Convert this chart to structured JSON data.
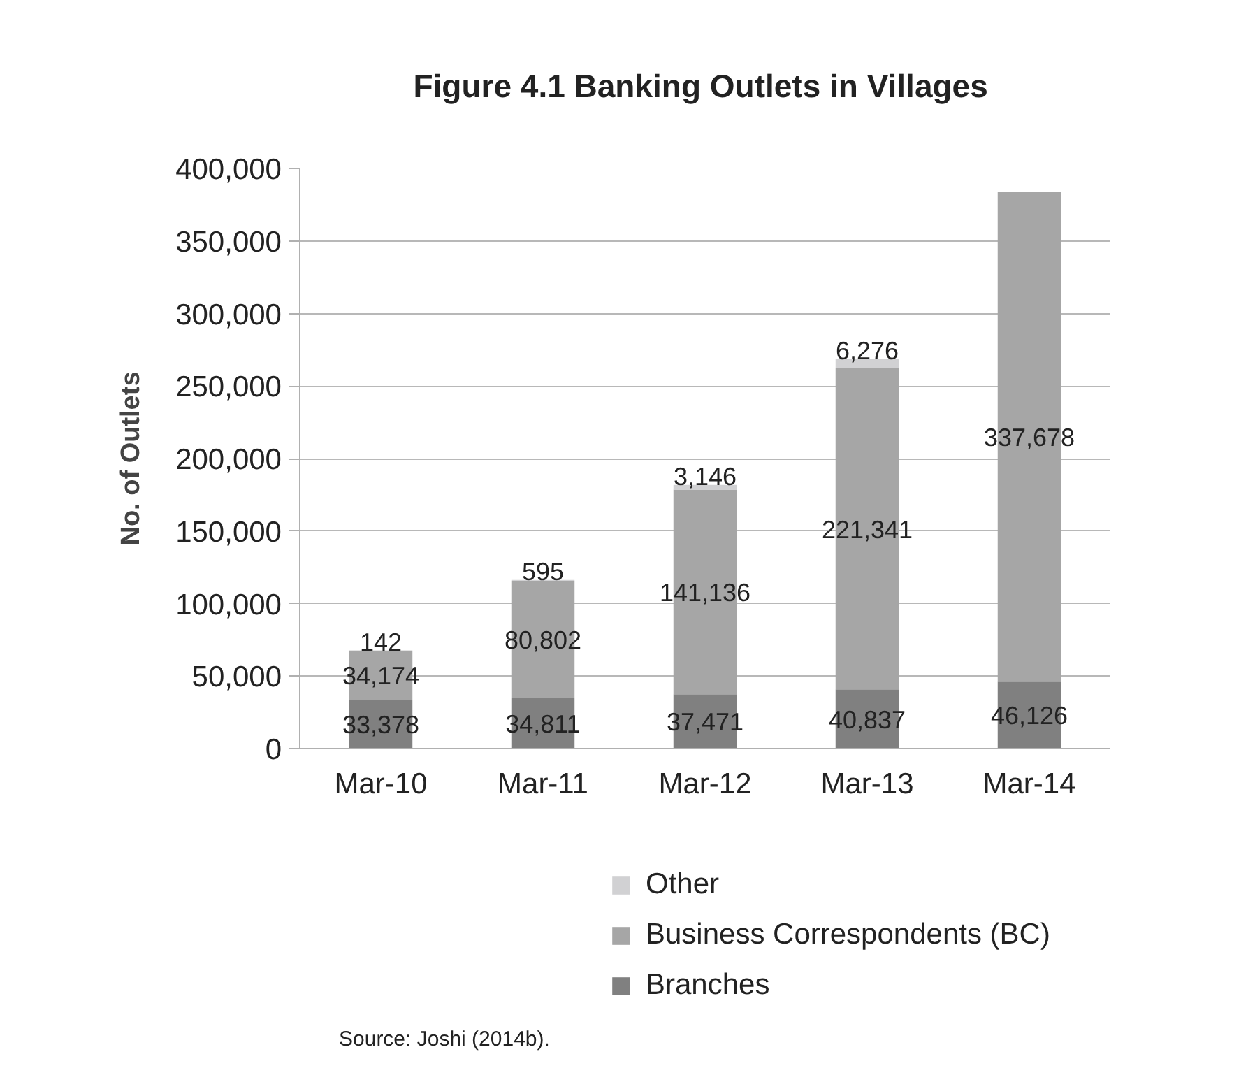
{
  "chart_data": {
    "type": "bar",
    "title": "Figure 4.1  Banking Outlets in Villages",
    "ylabel": "No. of Outlets",
    "categories": [
      "Mar-10",
      "Mar-11",
      "Mar-12",
      "Mar-13",
      "Mar-14"
    ],
    "stacked": true,
    "series": [
      {
        "name": "Branches",
        "color": "#808080",
        "values": [
          33378,
          34811,
          37471,
          40837,
          46126
        ],
        "value_labels": [
          "33,378",
          "34,811",
          "37,471",
          "40,837",
          "46,126"
        ]
      },
      {
        "name": "Business Correspondents (BC)",
        "color": "#a6a6a6",
        "values": [
          34174,
          80802,
          141136,
          221341,
          337678
        ],
        "value_labels": [
          "34,174",
          "80,802",
          "141,136",
          "221,341",
          "337,678"
        ]
      },
      {
        "name": "Other",
        "color": "#d1d1d3",
        "values": [
          142,
          595,
          3146,
          6276,
          null
        ],
        "value_labels": [
          "142",
          "595",
          "3,146",
          "6,276",
          null
        ]
      }
    ],
    "ylim": [
      0,
      400000
    ],
    "yticks": [
      {
        "value": 0,
        "label": "0"
      },
      {
        "value": 50000,
        "label": "50,000"
      },
      {
        "value": 100000,
        "label": "100,000"
      },
      {
        "value": 150000,
        "label": "150,000"
      },
      {
        "value": 200000,
        "label": "200,000"
      },
      {
        "value": 250000,
        "label": "250,000"
      },
      {
        "value": 300000,
        "label": "300,000"
      },
      {
        "value": 350000,
        "label": "350,000"
      },
      {
        "value": 400000,
        "label": "400,000"
      }
    ],
    "grid": "y",
    "legend": "bottom",
    "annotations": [
      "Source: Joshi (2014b)."
    ]
  }
}
